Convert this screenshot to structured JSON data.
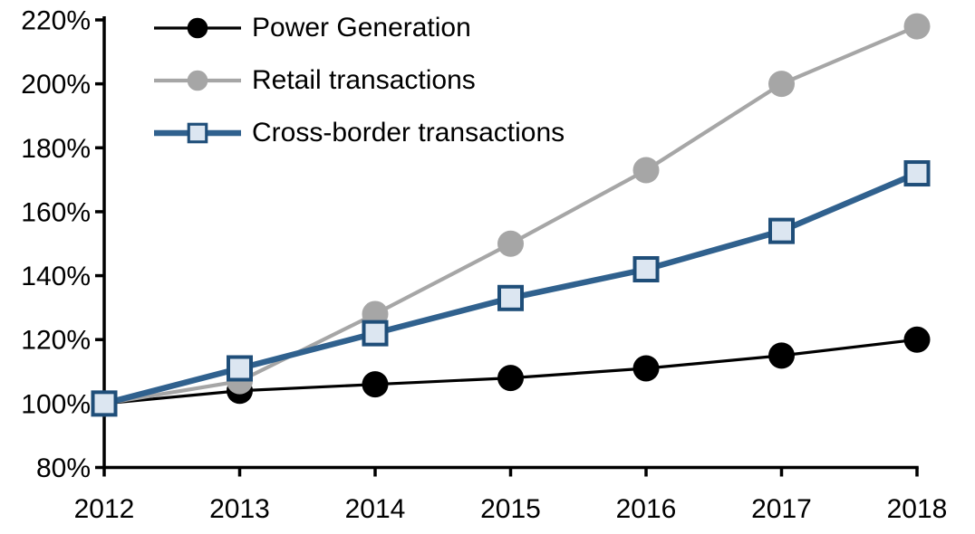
{
  "chart_data": {
    "type": "line",
    "x_labels": [
      "2012",
      "2013",
      "2014",
      "2015",
      "2016",
      "2017",
      "2018"
    ],
    "y_axis": {
      "min": 80,
      "max": 220,
      "step": 20,
      "suffix": "%",
      "tick_labels": [
        "80%",
        "100%",
        "120%",
        "140%",
        "160%",
        "180%",
        "200%",
        "220%"
      ]
    },
    "series": [
      {
        "name": "Power Generation",
        "values": [
          100,
          104,
          106,
          108,
          111,
          115,
          120
        ],
        "color": "#000000",
        "line_width": 3.2,
        "marker": "circle",
        "marker_fill": "#000000",
        "marker_stroke": "#000000"
      },
      {
        "name": "Retail transactions",
        "values": [
          100,
          107,
          128,
          150,
          173,
          200,
          218
        ],
        "color": "#a6a6a6",
        "line_width": 4.2,
        "marker": "circle",
        "marker_fill": "#a6a6a6",
        "marker_stroke": "#a6a6a6"
      },
      {
        "name": "Cross-border transactions",
        "values": [
          100,
          111,
          122,
          133,
          142,
          154,
          172
        ],
        "color": "#30618e",
        "line_width": 6.5,
        "marker": "square",
        "marker_fill": "#dce6f1",
        "marker_stroke": "#1f4e79"
      }
    ],
    "legend_position": "top-left",
    "grid": false,
    "axis_color": "#000000",
    "background": "#ffffff"
  }
}
